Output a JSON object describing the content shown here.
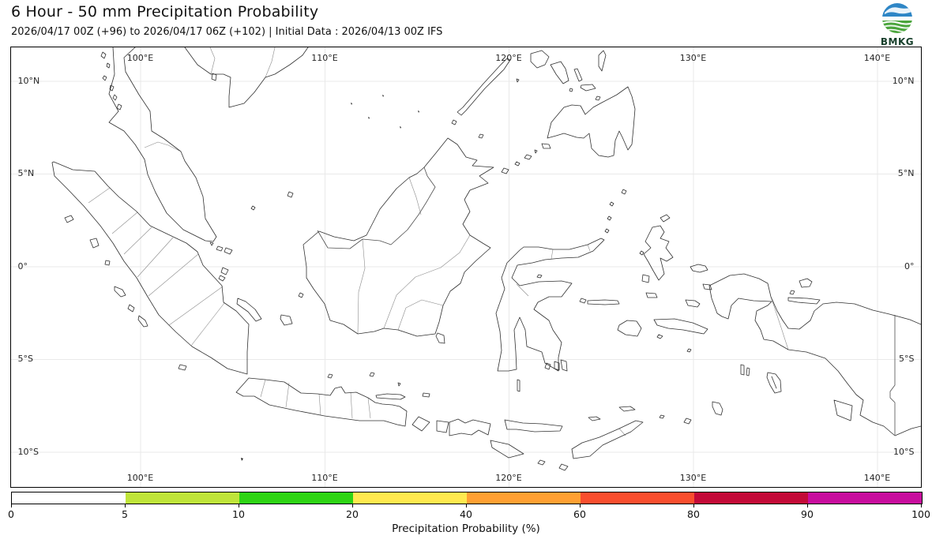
{
  "header": {
    "title": "6 Hour - 50 mm Precipitation Probability",
    "subtitle": "2026/04/17 00Z (+96) to 2026/04/17 06Z (+102) | Initial Data : 2026/04/13 00Z IFS"
  },
  "logo": {
    "label": "BMKG",
    "globe_blue": "#2e86c6",
    "globe_green": "#4ba53c"
  },
  "axes": {
    "lon_ticks": [
      {
        "label": "100°E"
      },
      {
        "label": "110°E"
      },
      {
        "label": "120°E"
      },
      {
        "label": "130°E"
      },
      {
        "label": "140°E"
      }
    ],
    "lat_ticks": [
      {
        "label": "10°N"
      },
      {
        "label": "5°N"
      },
      {
        "label": "0°"
      },
      {
        "label": "5°S"
      },
      {
        "label": "10°S"
      }
    ]
  },
  "colorbar": {
    "axis_label": "Precipitation Probability (%)",
    "ticks": [
      "0",
      "5",
      "10",
      "20",
      "40",
      "60",
      "80",
      "90",
      "100"
    ],
    "colors": [
      "#ffffff",
      "#bfe43a",
      "#2ed414",
      "#ffe94f",
      "#ffa033",
      "#f94e2e",
      "#c30a38",
      "#c80d9e"
    ]
  },
  "chart_data": {
    "type": "heatmap",
    "title": "6 Hour - 50 mm Precipitation Probability",
    "valid_period": "2026/04/17 00Z (+96) to 2026/04/17 06Z (+102)",
    "initial_data": "2026/04/13 00Z IFS",
    "xlabel_ticks": [
      "100°E",
      "110°E",
      "120°E",
      "130°E",
      "140°E"
    ],
    "ylabel_ticks": [
      "10°N",
      "5°N",
      "0°",
      "5°S",
      "10°S"
    ],
    "colorbar_label": "Precipitation Probability (%)",
    "colorbar_bounds": [
      0,
      5,
      10,
      20,
      40,
      60,
      80,
      90,
      100
    ],
    "colorbar_colors": [
      "#ffffff",
      "#bfe43a",
      "#2ed414",
      "#ffe94f",
      "#ffa033",
      "#f94e2e",
      "#c30a38",
      "#c80d9e"
    ],
    "field_note": "No shaded probability areas visible; entire map below lowest contour (probability < 5%)"
  }
}
